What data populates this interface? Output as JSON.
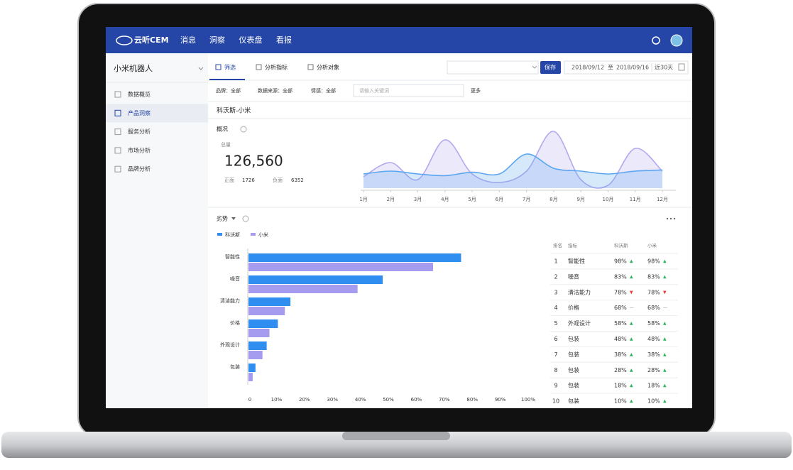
{
  "header": {
    "logo": "云听CEM",
    "nav": [
      "消息",
      "洞察",
      "仪表盘",
      "看报"
    ]
  },
  "sidebar": {
    "project": "小米机器人",
    "items": [
      "数据概览",
      "产品洞察",
      "服务分析",
      "市场分析",
      "品牌分析"
    ],
    "active": 1
  },
  "tabs": [
    "筛选",
    "分析指标",
    "分析对象"
  ],
  "toolbar": {
    "save": "保存",
    "date_from": "2018/09/12",
    "date_sep": "至",
    "date_to": "2018/09/16",
    "preset": "近30天"
  },
  "filters": {
    "items": [
      "品牌：全部",
      "数据来源：全部",
      "情感：全部"
    ],
    "search_placeholder": "请输入关键词",
    "more": "更多"
  },
  "page_title": "科沃斯-小米",
  "overview": {
    "title": "概况",
    "total_label": "总量",
    "total": "126,560",
    "positive_label": "正面",
    "positive": "1726",
    "negative_label": "负面",
    "negative": "6352"
  },
  "trend_chart": {
    "type": "line",
    "categories": [
      "1月",
      "2月",
      "3月",
      "4月",
      "5月",
      "6月",
      "7月",
      "8月",
      "9月",
      "10月",
      "11月",
      "12月"
    ],
    "ylim": [
      0,
      100
    ],
    "series": [
      {
        "color": "#5aa6f0",
        "values": [
          25,
          30,
          25,
          22,
          28,
          25,
          60,
          35,
          30,
          25,
          30,
          32
        ]
      },
      {
        "color": "#b3a9ee",
        "values": [
          20,
          45,
          15,
          85,
          25,
          10,
          30,
          100,
          15,
          5,
          70,
          30
        ]
      }
    ]
  },
  "bar_chart": {
    "type": "bar",
    "title": "劣势",
    "categories": [
      "智能性",
      "噪音",
      "清洁能力",
      "价格",
      "外观设计",
      "包装"
    ],
    "series": [
      {
        "name": "科沃斯",
        "color": "#2f8ef0",
        "values": [
          76,
          48,
          15,
          10.5,
          6.5,
          2.5
        ]
      },
      {
        "name": "小米",
        "color": "#a59cf0",
        "values": [
          66,
          39,
          13,
          7.5,
          5,
          1.5
        ]
      }
    ],
    "xlim": [
      0,
      100
    ],
    "xticks": [
      0,
      {
        "value": 10,
        "label": "10%"
      },
      {
        "value": 20,
        "label": "20%"
      },
      {
        "value": 30,
        "label": "30%"
      },
      {
        "value": 40,
        "label": "40%"
      },
      {
        "value": 50,
        "label": "50%"
      },
      {
        "value": 60,
        "label": "60%"
      },
      {
        "value": 70,
        "label": "70%"
      },
      {
        "value": 80,
        "label": "80%"
      },
      {
        "value": 90,
        "label": "90%"
      },
      {
        "value": 100,
        "label": "100%"
      }
    ]
  },
  "table": {
    "header": [
      "排名",
      "指标",
      "科沃斯",
      "小米"
    ],
    "trend_colors": {
      "▲": "#2db55d",
      "▼": "#e53935",
      "—": "#888888"
    },
    "rows": [
      [
        "1",
        "智能性",
        "98%",
        "▲",
        "98%",
        "▲"
      ],
      [
        "2",
        "噪音",
        "83%",
        "▲",
        "83%",
        "▲"
      ],
      [
        "3",
        "清洁能力",
        "78%",
        "▼",
        "78%",
        "▼"
      ],
      [
        "4",
        "价格",
        "68%",
        "—",
        "68%",
        "—"
      ],
      [
        "5",
        "外观设计",
        "58%",
        "▲",
        "58%",
        "▲"
      ],
      [
        "6",
        "包装",
        "48%",
        "▲",
        "48%",
        "▲"
      ],
      [
        "7",
        "包装",
        "38%",
        "▲",
        "38%",
        "▲"
      ],
      [
        "8",
        "包装",
        "28%",
        "▲",
        "28%",
        "▲"
      ],
      [
        "9",
        "包装",
        "18%",
        "▲",
        "18%",
        "▲"
      ],
      [
        "10",
        "包装",
        "10%",
        "▲",
        "10%",
        "▲"
      ]
    ]
  }
}
